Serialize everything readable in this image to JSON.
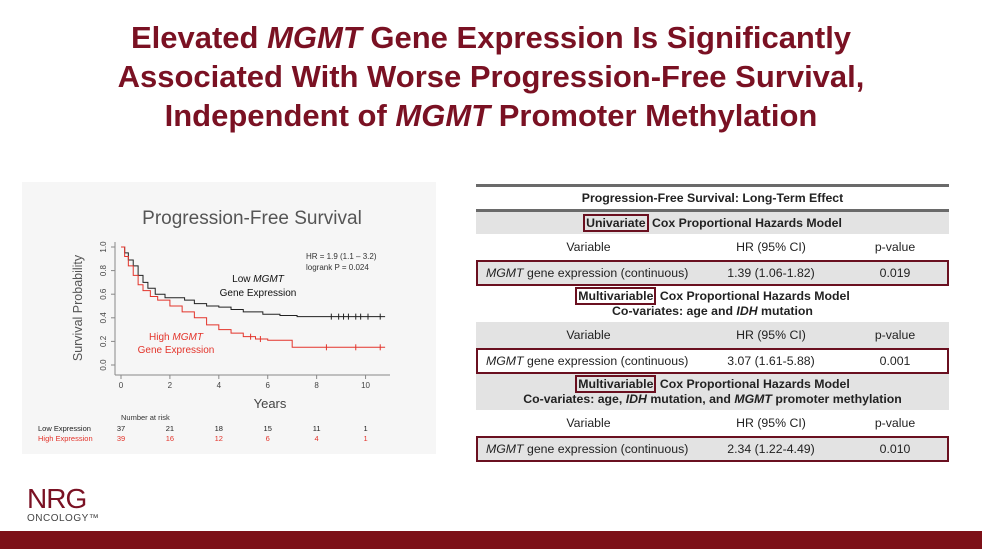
{
  "slide": {
    "title_line1_a": "Elevated ",
    "title_line1_italic": "MGMT",
    "title_line1_b": " Gene Expression Is Significantly",
    "title_line2": "Associated With Worse Progression-Free Survival,",
    "title_line3_a": "Independent of ",
    "title_line3_italic": "MGMT",
    "title_line3_b": " Promoter Methylation",
    "colors": {
      "title": "#7a1123",
      "footer_bar": "#7d1018",
      "box_outline": "#6a1020"
    }
  },
  "chart_data": {
    "type": "line",
    "title": "Progression-Free Survival",
    "xlabel": "Years",
    "ylabel": "Survival Probability",
    "xlim": [
      0,
      11
    ],
    "ylim": [
      0,
      1
    ],
    "xticks": [
      "0",
      "2",
      "4",
      "6",
      "8",
      "10"
    ],
    "yticks": [
      "0.0",
      "0.2",
      "0.4",
      "0.6",
      "0.8",
      "1.0"
    ],
    "stats_line1": "HR = 1.9 (1.1 – 3.2)",
    "stats_line2": "logrank P = 0.024",
    "series": [
      {
        "name": "Low MGMT Gene Expression",
        "label_line1_a": "Low ",
        "label_line1_italic": "MGMT",
        "label_line2": "Gene Expression",
        "color": "#222222",
        "points": [
          [
            0,
            1.0
          ],
          [
            0.15,
            0.95
          ],
          [
            0.3,
            0.89
          ],
          [
            0.5,
            0.84
          ],
          [
            0.7,
            0.76
          ],
          [
            0.9,
            0.7
          ],
          [
            1.1,
            0.65
          ],
          [
            1.4,
            0.6
          ],
          [
            1.8,
            0.57
          ],
          [
            2.2,
            0.57
          ],
          [
            2.6,
            0.55
          ],
          [
            3.0,
            0.52
          ],
          [
            3.5,
            0.5
          ],
          [
            4.0,
            0.49
          ],
          [
            4.5,
            0.47
          ],
          [
            5.0,
            0.45
          ],
          [
            5.8,
            0.43
          ],
          [
            6.5,
            0.42
          ],
          [
            7.2,
            0.41
          ],
          [
            8.0,
            0.41
          ],
          [
            8.8,
            0.41
          ],
          [
            10.0,
            0.41
          ],
          [
            10.8,
            0.41
          ]
        ],
        "censor_x": [
          8.6,
          8.9,
          9.1,
          9.3,
          9.6,
          9.8,
          10.1,
          10.6
        ]
      },
      {
        "name": "High MGMT Gene Expression",
        "label_line1_a": "High ",
        "label_line1_italic": "MGMT",
        "label_line2": "Gene Expression",
        "color": "#e3342b",
        "points": [
          [
            0,
            1.0
          ],
          [
            0.15,
            0.92
          ],
          [
            0.3,
            0.84
          ],
          [
            0.5,
            0.76
          ],
          [
            0.7,
            0.68
          ],
          [
            0.9,
            0.63
          ],
          [
            1.2,
            0.58
          ],
          [
            1.5,
            0.55
          ],
          [
            2.0,
            0.5
          ],
          [
            2.5,
            0.45
          ],
          [
            3.0,
            0.4
          ],
          [
            3.5,
            0.34
          ],
          [
            4.0,
            0.3
          ],
          [
            4.5,
            0.27
          ],
          [
            5.0,
            0.24
          ],
          [
            5.5,
            0.22
          ],
          [
            6.0,
            0.21
          ],
          [
            7.0,
            0.15
          ],
          [
            8.0,
            0.15
          ],
          [
            9.0,
            0.15
          ],
          [
            10.0,
            0.15
          ],
          [
            10.8,
            0.15
          ]
        ],
        "censor_x": [
          5.3,
          5.7,
          8.4,
          9.6,
          10.6
        ]
      }
    ],
    "risk_table": {
      "header": "Number at risk",
      "rows": [
        {
          "label": "Low Expression",
          "color": "#222222",
          "values": [
            "37",
            "21",
            "18",
            "15",
            "11",
            "1"
          ]
        },
        {
          "label": "High Expression",
          "color": "#e3342b",
          "values": [
            "39",
            "16",
            "12",
            "6",
            "4",
            "1"
          ]
        }
      ]
    }
  },
  "table": {
    "title": "Progression-Free Survival: Long-Term Effect",
    "col_variable": "Variable",
    "col_hr": "HR (95% CI)",
    "col_p": "p-value",
    "sections": [
      {
        "model_word": "Univariate",
        "model_rest": " Cox Proportional Hazards Model",
        "cov_a": "",
        "cov_i1": "",
        "cov_b": "",
        "cov_i2": "",
        "cov_c": "",
        "var_italic": "MGMT",
        "var_rest": " gene expression (continuous)",
        "hr": "1.39 (1.06-1.82)",
        "p": "0.019"
      },
      {
        "model_word": "Multivariable",
        "model_rest": " Cox Proportional Hazards Model",
        "cov_a": "Co-variates: age and ",
        "cov_i1": "IDH",
        "cov_b": " mutation",
        "cov_i2": "",
        "cov_c": "",
        "var_italic": "MGMT",
        "var_rest": " gene expression (continuous)",
        "hr": "3.07 (1.61-5.88)",
        "p": "0.001"
      },
      {
        "model_word": "Multivariable",
        "model_rest": " Cox Proportional Hazards Model",
        "cov_a": "Co-variates: age, ",
        "cov_i1": "IDH",
        "cov_b": " mutation, and ",
        "cov_i2": "MGMT",
        "cov_c": " promoter methylation",
        "var_italic": "MGMT",
        "var_rest": " gene expression (continuous)",
        "hr": "2.34 (1.22-4.49)",
        "p": "0.010"
      }
    ]
  },
  "logo": {
    "main": "NRG",
    "sub": "ONCOLOGY™"
  }
}
